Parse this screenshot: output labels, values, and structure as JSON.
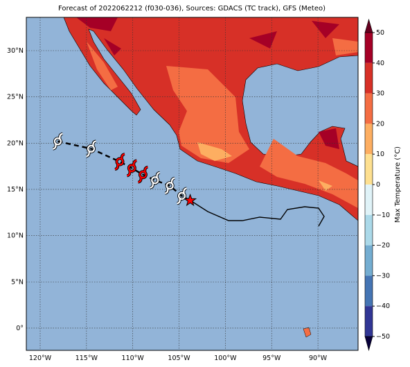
{
  "title": "Forecast of 2022062212 (f030-036), Sources: GDACS (TC track), GFS (Meteo)",
  "lon_ticks": [
    "120°W",
    "115°W",
    "110°W",
    "105°W",
    "100°W",
    "95°W",
    "90°W"
  ],
  "lat_ticks": [
    "30°N",
    "25°N",
    "20°N",
    "15°N",
    "10°N",
    "5°N",
    "0°"
  ],
  "colorbar": {
    "label": "Max Temperature (°C)",
    "ticks": [
      "50",
      "40",
      "30",
      "20",
      "10",
      "0",
      "−10",
      "−20",
      "−30",
      "−40",
      "−50"
    ]
  },
  "track": [
    {
      "lon": -118.1,
      "lat": 20.2,
      "color": "#ffffff"
    },
    {
      "lon": -114.5,
      "lat": 19.4,
      "color": "#ffffff"
    },
    {
      "lon": -111.4,
      "lat": 18.0,
      "color": "#ff0000"
    },
    {
      "lon": -110.1,
      "lat": 17.3,
      "color": "#ff0000"
    },
    {
      "lon": -108.9,
      "lat": 16.6,
      "color": "#ff0000"
    },
    {
      "lon": -107.6,
      "lat": 16.0,
      "color": "#ffffff"
    },
    {
      "lon": -106.0,
      "lat": 15.4,
      "color": "#ffffff"
    },
    {
      "lon": -104.7,
      "lat": 14.3,
      "color": "#ffffff"
    }
  ],
  "current_position": {
    "lon": -103.8,
    "lat": 13.8
  }
}
